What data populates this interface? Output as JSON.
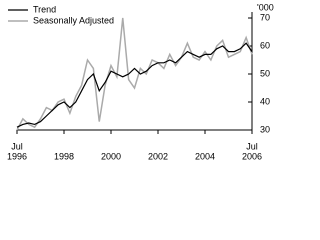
{
  "chart_data": {
    "type": "line",
    "legend_loc": "upper left",
    "y_unit": "'000",
    "x": [
      "1996-07",
      "1996-10",
      "1997-01",
      "1997-04",
      "1997-07",
      "1997-10",
      "1998-01",
      "1998-04",
      "1998-07",
      "1998-10",
      "1999-01",
      "1999-04",
      "1999-07",
      "1999-10",
      "2000-01",
      "2000-04",
      "2000-07",
      "2000-10",
      "2001-01",
      "2001-04",
      "2001-07",
      "2001-10",
      "2002-01",
      "2002-04",
      "2002-07",
      "2002-10",
      "2003-01",
      "2003-04",
      "2003-07",
      "2003-10",
      "2004-01",
      "2004-04",
      "2004-07",
      "2004-10",
      "2005-01",
      "2005-04",
      "2005-07",
      "2005-10",
      "2006-01",
      "2006-04",
      "2006-07"
    ],
    "series": [
      {
        "name": "Trend",
        "color": "#000000",
        "values": [
          31,
          32,
          32.5,
          32,
          33,
          35,
          37,
          39,
          40,
          38,
          40,
          44,
          48,
          50,
          44,
          47,
          51,
          50,
          49,
          50,
          52,
          50,
          51,
          53,
          54,
          54,
          55,
          54,
          56,
          58,
          57,
          56,
          57,
          57,
          59,
          60,
          58,
          58,
          59,
          61,
          58
        ]
      },
      {
        "name": "Seasonally Adjusted",
        "color": "#aaaaaa",
        "values": [
          30,
          34,
          32,
          31,
          34,
          38,
          37,
          40,
          41,
          36,
          42,
          46,
          55,
          52,
          33,
          46,
          53,
          49,
          70,
          48,
          45,
          52,
          50,
          55,
          54,
          52,
          57,
          53,
          56,
          61,
          56,
          55,
          58,
          55,
          60,
          62,
          56,
          57,
          58,
          63,
          57
        ]
      }
    ],
    "xlim": [
      "1996-07",
      "2006-07"
    ],
    "xticks": [
      {
        "value": "1996-07",
        "label": "1996"
      },
      {
        "value": "1998-07",
        "label": "1998"
      },
      {
        "value": "2000-07",
        "label": "2000"
      },
      {
        "value": "2002-07",
        "label": "2002"
      },
      {
        "value": "2004-07",
        "label": "2004"
      },
      {
        "value": "2006-07",
        "label": "2006"
      }
    ],
    "annotations": [
      "Jul",
      "Jul"
    ],
    "ylim": [
      30,
      70
    ],
    "yticks": [
      30,
      40,
      50,
      60,
      70
    ]
  }
}
